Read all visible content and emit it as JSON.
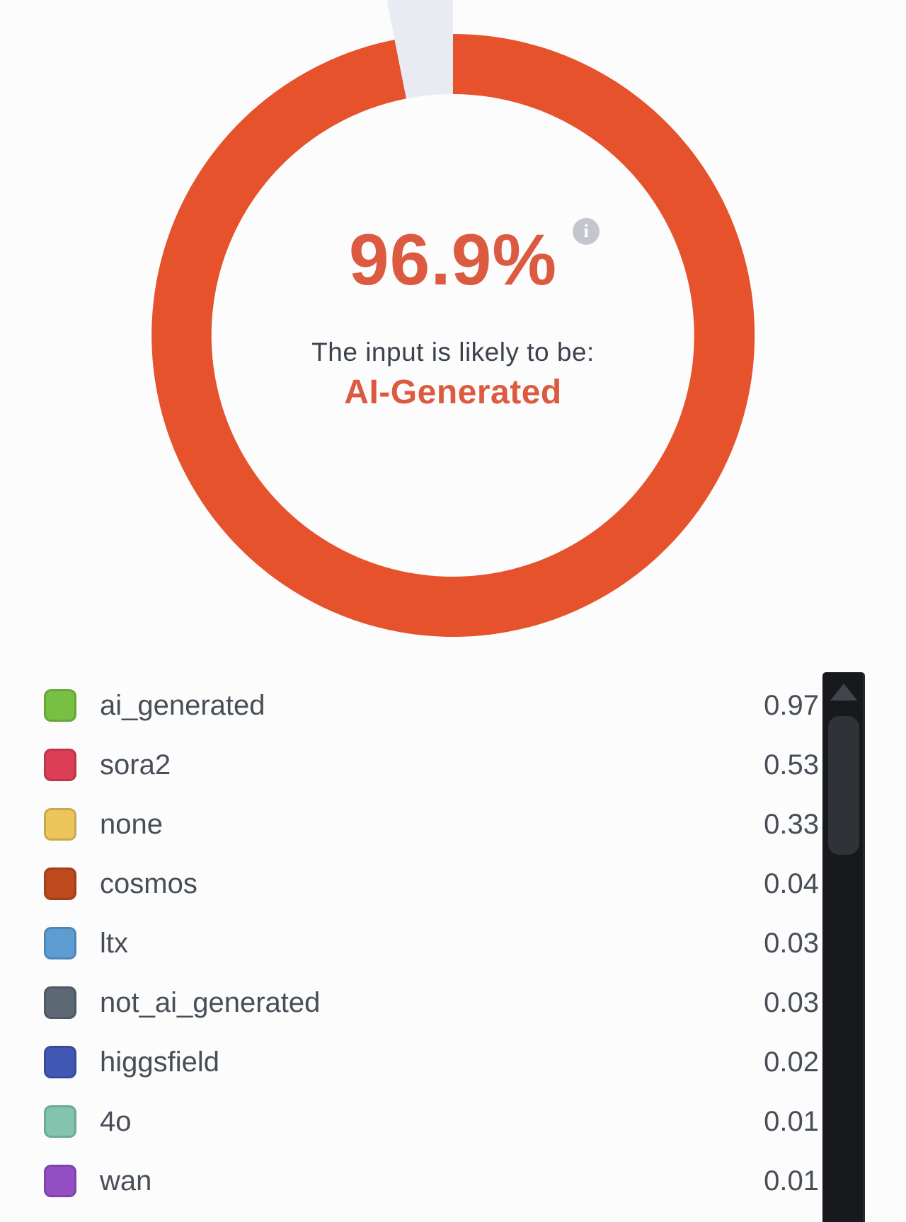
{
  "chart_data": {
    "type": "pie",
    "percent": 96.9,
    "center_label": "96.9%",
    "caption": "The input is likely to be:",
    "verdict": "AI-Generated",
    "start_angle_deg": 0,
    "clockwise": true,
    "slices": [
      {
        "name": "ai-generated-likelihood",
        "value": 96.9,
        "color": "#e5522b"
      },
      {
        "name": "remainder",
        "value": 3.1,
        "color": "#e9ebf3"
      }
    ],
    "classes": [
      {
        "label": "ai_generated",
        "value": 0.97
      },
      {
        "label": "sora2",
        "value": 0.53
      },
      {
        "label": "none",
        "value": 0.33
      },
      {
        "label": "cosmos",
        "value": 0.04
      },
      {
        "label": "ltx",
        "value": 0.03
      },
      {
        "label": "not_ai_generated",
        "value": 0.03
      },
      {
        "label": "higgsfield",
        "value": 0.02
      },
      {
        "label": "4o",
        "value": 0.01
      },
      {
        "label": "wan",
        "value": 0.01
      }
    ]
  },
  "gauge": {
    "percent_label": "96.9%",
    "caption": "The input is likely to be:",
    "verdict": "AI-Generated",
    "accent_color": "#db5a40",
    "ring_color": "#e5522b",
    "rest_color": "#e9ebf3"
  },
  "icons": {
    "info": "i",
    "scroll_up_arrow": ""
  },
  "legend": {
    "items": [
      {
        "label": "ai_generated",
        "value": "0.97",
        "color": "#78c043"
      },
      {
        "label": "sora2",
        "value": "0.53",
        "color": "#dc3e56"
      },
      {
        "label": "none",
        "value": "0.33",
        "color": "#ecc55b"
      },
      {
        "label": "cosmos",
        "value": "0.04",
        "color": "#bc4a1c"
      },
      {
        "label": "ltx",
        "value": "0.03",
        "color": "#5d9dd1"
      },
      {
        "label": "not_ai_generated",
        "value": "0.03",
        "color": "#5d6875"
      },
      {
        "label": "higgsfield",
        "value": "0.02",
        "color": "#4158b4"
      },
      {
        "label": "4o",
        "value": "0.01",
        "color": "#82c4ae"
      },
      {
        "label": "wan",
        "value": "0.01",
        "color": "#954fc5"
      }
    ]
  }
}
